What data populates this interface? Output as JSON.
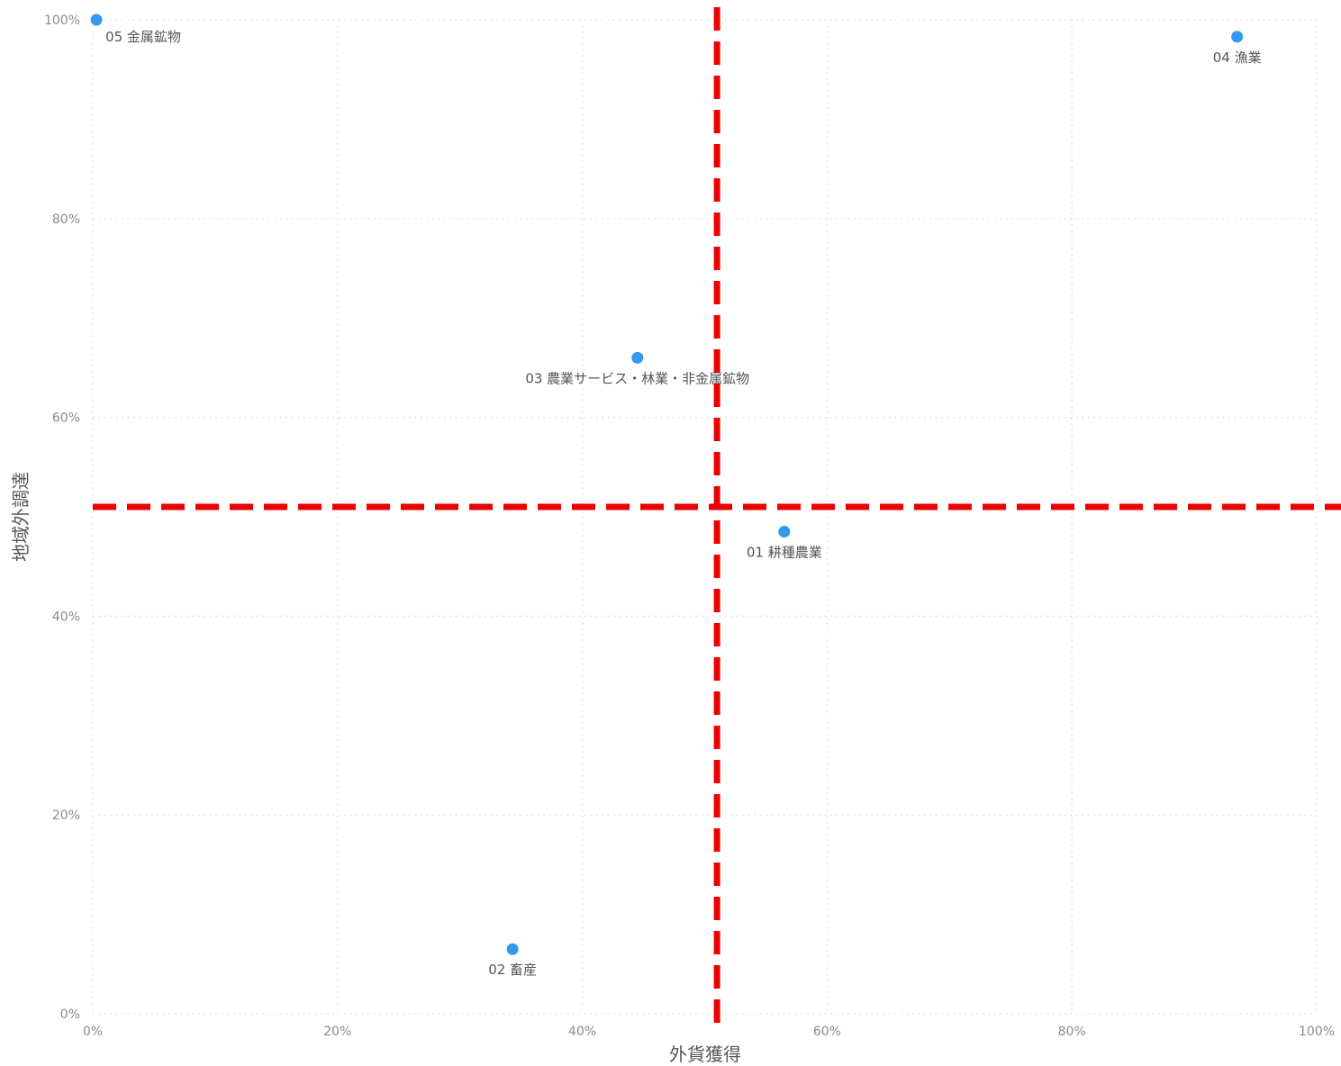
{
  "chart_data": {
    "type": "scatter",
    "xlabel": "外貨獲得",
    "ylabel": "地域外調達",
    "xlim": [
      0,
      100
    ],
    "ylim": [
      0,
      100
    ],
    "x_ticks": [
      "0%",
      "20%",
      "40%",
      "60%",
      "80%",
      "100%"
    ],
    "y_ticks": [
      "0%",
      "20%",
      "40%",
      "60%",
      "80%",
      "100%"
    ],
    "grid": true,
    "grid_style": "dotted",
    "point_color": "#3399ee",
    "reference_line_color": "#ee0000",
    "reference_lines": {
      "x": 51,
      "y": 51
    },
    "points": [
      {
        "label": "05 金属鉱物",
        "x": 0.3,
        "y": 100
      },
      {
        "label": "04 漁業",
        "x": 93.5,
        "y": 98.3
      },
      {
        "label": "03 農業サービス・林業・非金属鉱物",
        "x": 44.5,
        "y": 66.0
      },
      {
        "label": "01 耕種農業",
        "x": 56.5,
        "y": 48.5
      },
      {
        "label": "02 畜産",
        "x": 34.3,
        "y": 6.5
      }
    ]
  }
}
